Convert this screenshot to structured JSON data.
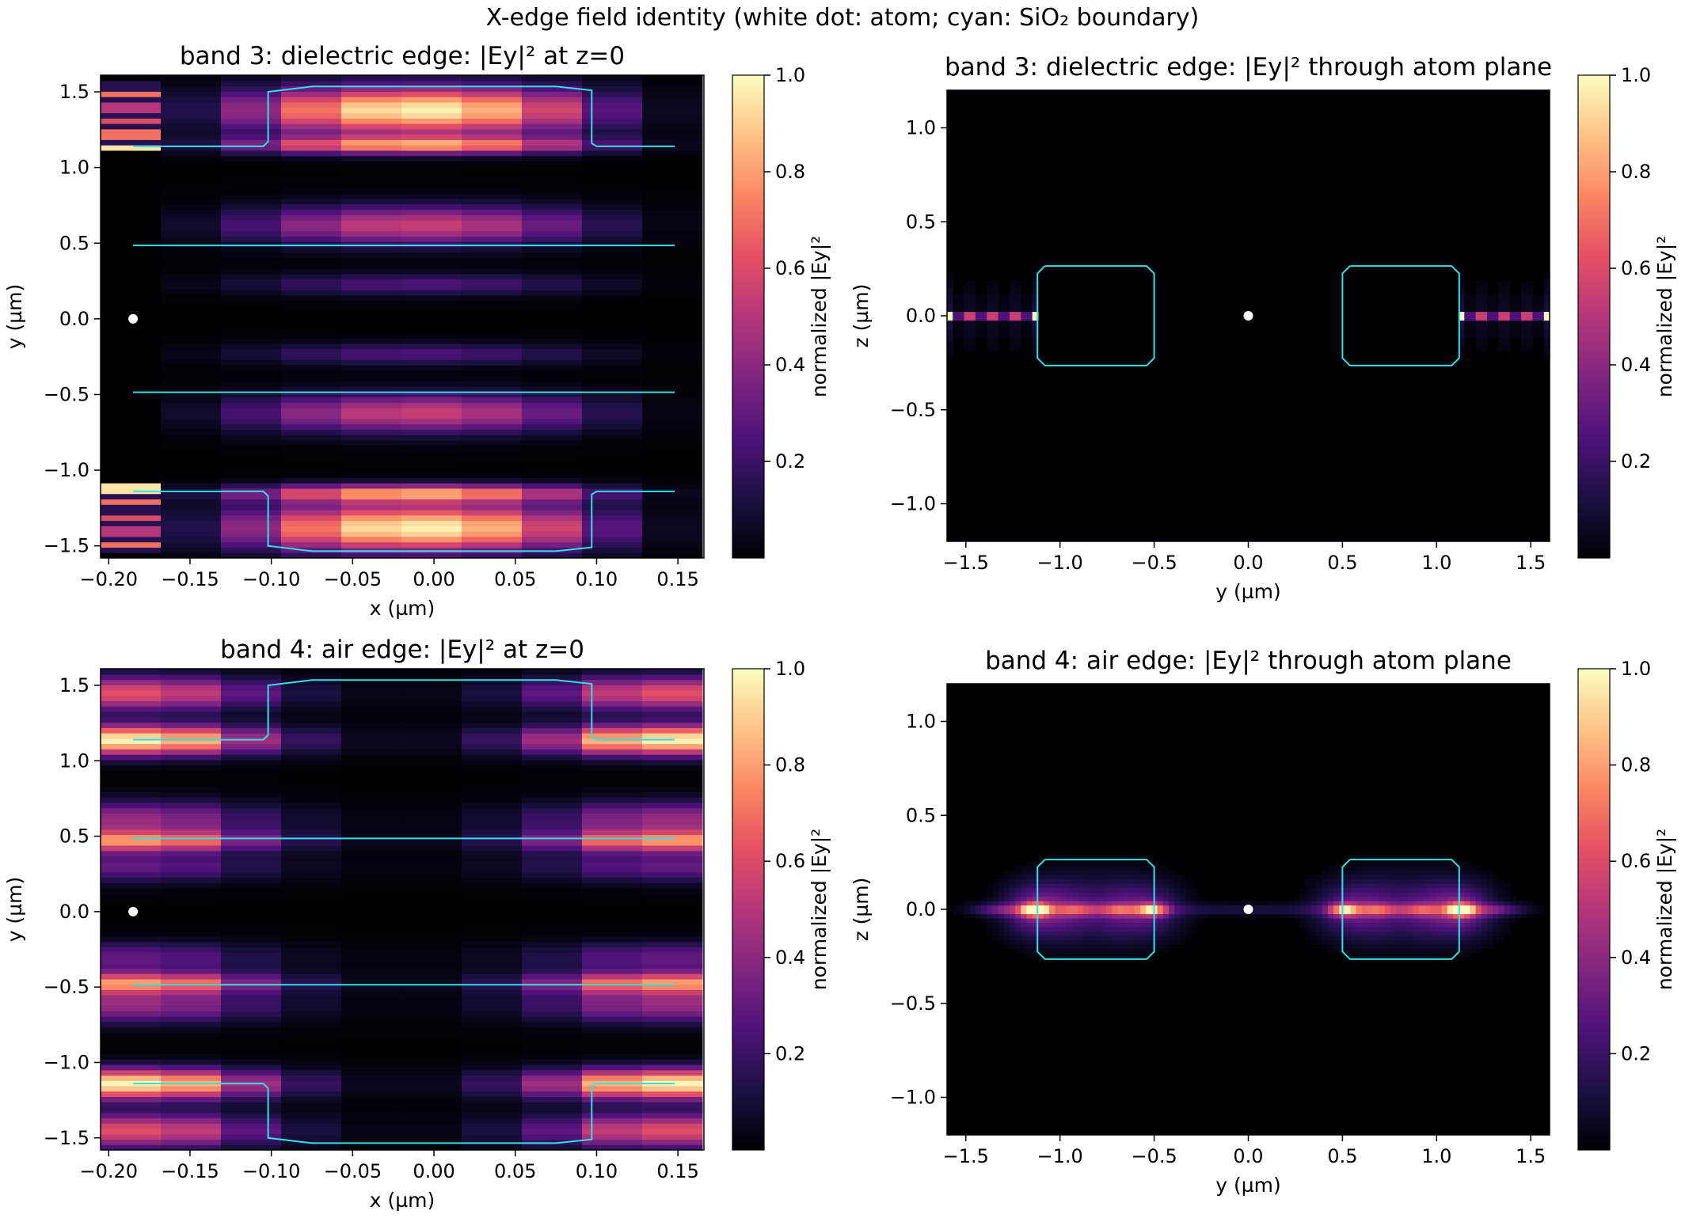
{
  "figure": {
    "suptitle": "X-edge field identity (white dot: atom; cyan: SiO₂ boundary)"
  },
  "colors": {
    "background": "#ffffff",
    "boundary": "#33e0e8",
    "atom": "#ffffff",
    "colormap": "magma"
  },
  "chart_data": [
    {
      "type": "heatmap",
      "title": "band 3: dielectric edge: |Ey|² at z=0",
      "xlabel": "x (µm)",
      "ylabel": "y (µm)",
      "xlim": [
        -0.205,
        0.166
      ],
      "ylim": [
        -1.58,
        1.61
      ],
      "xticks": [
        -0.2,
        -0.15,
        -0.1,
        -0.05,
        0.0,
        0.05,
        0.1,
        0.15
      ],
      "xtick_labels": [
        "−0.20",
        "−0.15",
        "−0.10",
        "−0.05",
        "0.00",
        "0.05",
        "0.10",
        "0.15"
      ],
      "yticks": [
        -1.5,
        -1.0,
        -0.5,
        0.0,
        0.5,
        1.0,
        1.5
      ],
      "ytick_labels": [
        "−1.5",
        "−1.0",
        "−0.5",
        "0.0",
        "0.5",
        "1.0",
        "1.5"
      ],
      "colorbar": {
        "label": "normalized |Ey|²",
        "range": [
          0,
          1
        ],
        "ticks": [
          0.2,
          0.4,
          0.6,
          0.8,
          1.0
        ],
        "tick_labels": [
          "0.2",
          "0.4",
          "0.6",
          "0.8",
          "1.0"
        ]
      },
      "atom": {
        "x": -0.185,
        "y": 0.0
      }
    },
    {
      "type": "heatmap",
      "title": "band 3: dielectric edge: |Ey|² through atom plane",
      "xlabel": "y (µm)",
      "ylabel": "z (µm)",
      "xlim": [
        -1.6,
        1.6
      ],
      "ylim": [
        -1.2,
        1.2
      ],
      "xticks": [
        -1.5,
        -1.0,
        -0.5,
        0.0,
        0.5,
        1.0,
        1.5
      ],
      "xtick_labels": [
        "−1.5",
        "−1.0",
        "−0.5",
        "0.0",
        "0.5",
        "1.0",
        "1.5"
      ],
      "yticks": [
        -1.0,
        -0.5,
        0.0,
        0.5,
        1.0
      ],
      "ytick_labels": [
        "−1.0",
        "−0.5",
        "0.0",
        "0.5",
        "1.0"
      ],
      "colorbar": {
        "label": "normalized |Ey|²",
        "range": [
          0,
          1
        ],
        "ticks": [
          0.2,
          0.4,
          0.6,
          0.8,
          1.0
        ],
        "tick_labels": [
          "0.2",
          "0.4",
          "0.6",
          "0.8",
          "1.0"
        ]
      },
      "atom": {
        "x": 0.0,
        "y": 0.0
      }
    },
    {
      "type": "heatmap",
      "title": "band 4: air edge: |Ey|² at z=0",
      "xlabel": "x (µm)",
      "ylabel": "y (µm)",
      "xlim": [
        -0.205,
        0.166
      ],
      "ylim": [
        -1.58,
        1.61
      ],
      "xticks": [
        -0.2,
        -0.15,
        -0.1,
        -0.05,
        0.0,
        0.05,
        0.1,
        0.15
      ],
      "xtick_labels": [
        "−0.20",
        "−0.15",
        "−0.10",
        "−0.05",
        "0.00",
        "0.05",
        "0.10",
        "0.15"
      ],
      "yticks": [
        -1.5,
        -1.0,
        -0.5,
        0.0,
        0.5,
        1.0,
        1.5
      ],
      "ytick_labels": [
        "−1.5",
        "−1.0",
        "−0.5",
        "0.0",
        "0.5",
        "1.0",
        "1.5"
      ],
      "colorbar": {
        "label": "normalized |Ey|²",
        "range": [
          0,
          1
        ],
        "ticks": [
          0.2,
          0.4,
          0.6,
          0.8,
          1.0
        ],
        "tick_labels": [
          "0.2",
          "0.4",
          "0.6",
          "0.8",
          "1.0"
        ]
      },
      "atom": {
        "x": -0.185,
        "y": 0.0
      }
    },
    {
      "type": "heatmap",
      "title": "band 4: air edge: |Ey|² through atom plane",
      "xlabel": "y (µm)",
      "ylabel": "z (µm)",
      "xlim": [
        -1.6,
        1.6
      ],
      "ylim": [
        -1.2,
        1.2
      ],
      "xticks": [
        -1.5,
        -1.0,
        -0.5,
        0.0,
        0.5,
        1.0,
        1.5
      ],
      "xtick_labels": [
        "−1.5",
        "−1.0",
        "−0.5",
        "0.0",
        "0.5",
        "1.0",
        "1.5"
      ],
      "yticks": [
        -1.0,
        -0.5,
        0.0,
        0.5,
        1.0
      ],
      "ytick_labels": [
        "−1.0",
        "−0.5",
        "0.0",
        "0.5",
        "1.0"
      ],
      "colorbar": {
        "label": "normalized |Ey|²",
        "range": [
          0,
          1
        ],
        "ticks": [
          0.2,
          0.4,
          0.6,
          0.8,
          1.0
        ],
        "tick_labels": [
          "0.2",
          "0.4",
          "0.6",
          "0.8",
          "1.0"
        ]
      },
      "atom": {
        "x": 0.0,
        "y": 0.0
      }
    }
  ]
}
